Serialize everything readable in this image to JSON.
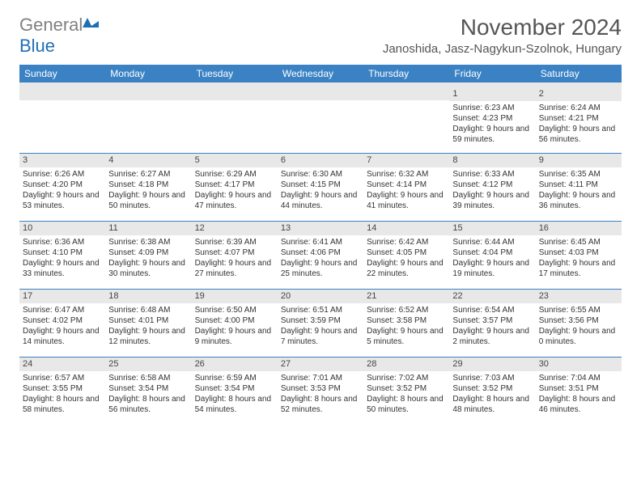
{
  "logo": {
    "part1": "General",
    "part2": "Blue"
  },
  "title": "November 2024",
  "location": "Janoshida, Jasz-Nagykun-Szolnok, Hungary",
  "colors": {
    "header_bg": "#3b82c4",
    "header_text": "#ffffff",
    "daynum_bg": "#e8e8e8",
    "row_border": "#3b82c4",
    "logo_gray": "#808080",
    "logo_blue": "#1f6fb5",
    "title_color": "#555555",
    "body_text": "#333333"
  },
  "typography": {
    "title_fontsize": 28,
    "location_fontsize": 15,
    "header_fontsize": 12,
    "daynum_fontsize": 11,
    "cell_fontsize": 10
  },
  "day_headers": [
    "Sunday",
    "Monday",
    "Tuesday",
    "Wednesday",
    "Thursday",
    "Friday",
    "Saturday"
  ],
  "weeks": [
    [
      {
        "n": "",
        "sr": "",
        "ss": "",
        "dl": ""
      },
      {
        "n": "",
        "sr": "",
        "ss": "",
        "dl": ""
      },
      {
        "n": "",
        "sr": "",
        "ss": "",
        "dl": ""
      },
      {
        "n": "",
        "sr": "",
        "ss": "",
        "dl": ""
      },
      {
        "n": "",
        "sr": "",
        "ss": "",
        "dl": ""
      },
      {
        "n": "1",
        "sr": "Sunrise: 6:23 AM",
        "ss": "Sunset: 4:23 PM",
        "dl": "Daylight: 9 hours and 59 minutes."
      },
      {
        "n": "2",
        "sr": "Sunrise: 6:24 AM",
        "ss": "Sunset: 4:21 PM",
        "dl": "Daylight: 9 hours and 56 minutes."
      }
    ],
    [
      {
        "n": "3",
        "sr": "Sunrise: 6:26 AM",
        "ss": "Sunset: 4:20 PM",
        "dl": "Daylight: 9 hours and 53 minutes."
      },
      {
        "n": "4",
        "sr": "Sunrise: 6:27 AM",
        "ss": "Sunset: 4:18 PM",
        "dl": "Daylight: 9 hours and 50 minutes."
      },
      {
        "n": "5",
        "sr": "Sunrise: 6:29 AM",
        "ss": "Sunset: 4:17 PM",
        "dl": "Daylight: 9 hours and 47 minutes."
      },
      {
        "n": "6",
        "sr": "Sunrise: 6:30 AM",
        "ss": "Sunset: 4:15 PM",
        "dl": "Daylight: 9 hours and 44 minutes."
      },
      {
        "n": "7",
        "sr": "Sunrise: 6:32 AM",
        "ss": "Sunset: 4:14 PM",
        "dl": "Daylight: 9 hours and 41 minutes."
      },
      {
        "n": "8",
        "sr": "Sunrise: 6:33 AM",
        "ss": "Sunset: 4:12 PM",
        "dl": "Daylight: 9 hours and 39 minutes."
      },
      {
        "n": "9",
        "sr": "Sunrise: 6:35 AM",
        "ss": "Sunset: 4:11 PM",
        "dl": "Daylight: 9 hours and 36 minutes."
      }
    ],
    [
      {
        "n": "10",
        "sr": "Sunrise: 6:36 AM",
        "ss": "Sunset: 4:10 PM",
        "dl": "Daylight: 9 hours and 33 minutes."
      },
      {
        "n": "11",
        "sr": "Sunrise: 6:38 AM",
        "ss": "Sunset: 4:09 PM",
        "dl": "Daylight: 9 hours and 30 minutes."
      },
      {
        "n": "12",
        "sr": "Sunrise: 6:39 AM",
        "ss": "Sunset: 4:07 PM",
        "dl": "Daylight: 9 hours and 27 minutes."
      },
      {
        "n": "13",
        "sr": "Sunrise: 6:41 AM",
        "ss": "Sunset: 4:06 PM",
        "dl": "Daylight: 9 hours and 25 minutes."
      },
      {
        "n": "14",
        "sr": "Sunrise: 6:42 AM",
        "ss": "Sunset: 4:05 PM",
        "dl": "Daylight: 9 hours and 22 minutes."
      },
      {
        "n": "15",
        "sr": "Sunrise: 6:44 AM",
        "ss": "Sunset: 4:04 PM",
        "dl": "Daylight: 9 hours and 19 minutes."
      },
      {
        "n": "16",
        "sr": "Sunrise: 6:45 AM",
        "ss": "Sunset: 4:03 PM",
        "dl": "Daylight: 9 hours and 17 minutes."
      }
    ],
    [
      {
        "n": "17",
        "sr": "Sunrise: 6:47 AM",
        "ss": "Sunset: 4:02 PM",
        "dl": "Daylight: 9 hours and 14 minutes."
      },
      {
        "n": "18",
        "sr": "Sunrise: 6:48 AM",
        "ss": "Sunset: 4:01 PM",
        "dl": "Daylight: 9 hours and 12 minutes."
      },
      {
        "n": "19",
        "sr": "Sunrise: 6:50 AM",
        "ss": "Sunset: 4:00 PM",
        "dl": "Daylight: 9 hours and 9 minutes."
      },
      {
        "n": "20",
        "sr": "Sunrise: 6:51 AM",
        "ss": "Sunset: 3:59 PM",
        "dl": "Daylight: 9 hours and 7 minutes."
      },
      {
        "n": "21",
        "sr": "Sunrise: 6:52 AM",
        "ss": "Sunset: 3:58 PM",
        "dl": "Daylight: 9 hours and 5 minutes."
      },
      {
        "n": "22",
        "sr": "Sunrise: 6:54 AM",
        "ss": "Sunset: 3:57 PM",
        "dl": "Daylight: 9 hours and 2 minutes."
      },
      {
        "n": "23",
        "sr": "Sunrise: 6:55 AM",
        "ss": "Sunset: 3:56 PM",
        "dl": "Daylight: 9 hours and 0 minutes."
      }
    ],
    [
      {
        "n": "24",
        "sr": "Sunrise: 6:57 AM",
        "ss": "Sunset: 3:55 PM",
        "dl": "Daylight: 8 hours and 58 minutes."
      },
      {
        "n": "25",
        "sr": "Sunrise: 6:58 AM",
        "ss": "Sunset: 3:54 PM",
        "dl": "Daylight: 8 hours and 56 minutes."
      },
      {
        "n": "26",
        "sr": "Sunrise: 6:59 AM",
        "ss": "Sunset: 3:54 PM",
        "dl": "Daylight: 8 hours and 54 minutes."
      },
      {
        "n": "27",
        "sr": "Sunrise: 7:01 AM",
        "ss": "Sunset: 3:53 PM",
        "dl": "Daylight: 8 hours and 52 minutes."
      },
      {
        "n": "28",
        "sr": "Sunrise: 7:02 AM",
        "ss": "Sunset: 3:52 PM",
        "dl": "Daylight: 8 hours and 50 minutes."
      },
      {
        "n": "29",
        "sr": "Sunrise: 7:03 AM",
        "ss": "Sunset: 3:52 PM",
        "dl": "Daylight: 8 hours and 48 minutes."
      },
      {
        "n": "30",
        "sr": "Sunrise: 7:04 AM",
        "ss": "Sunset: 3:51 PM",
        "dl": "Daylight: 8 hours and 46 minutes."
      }
    ]
  ]
}
